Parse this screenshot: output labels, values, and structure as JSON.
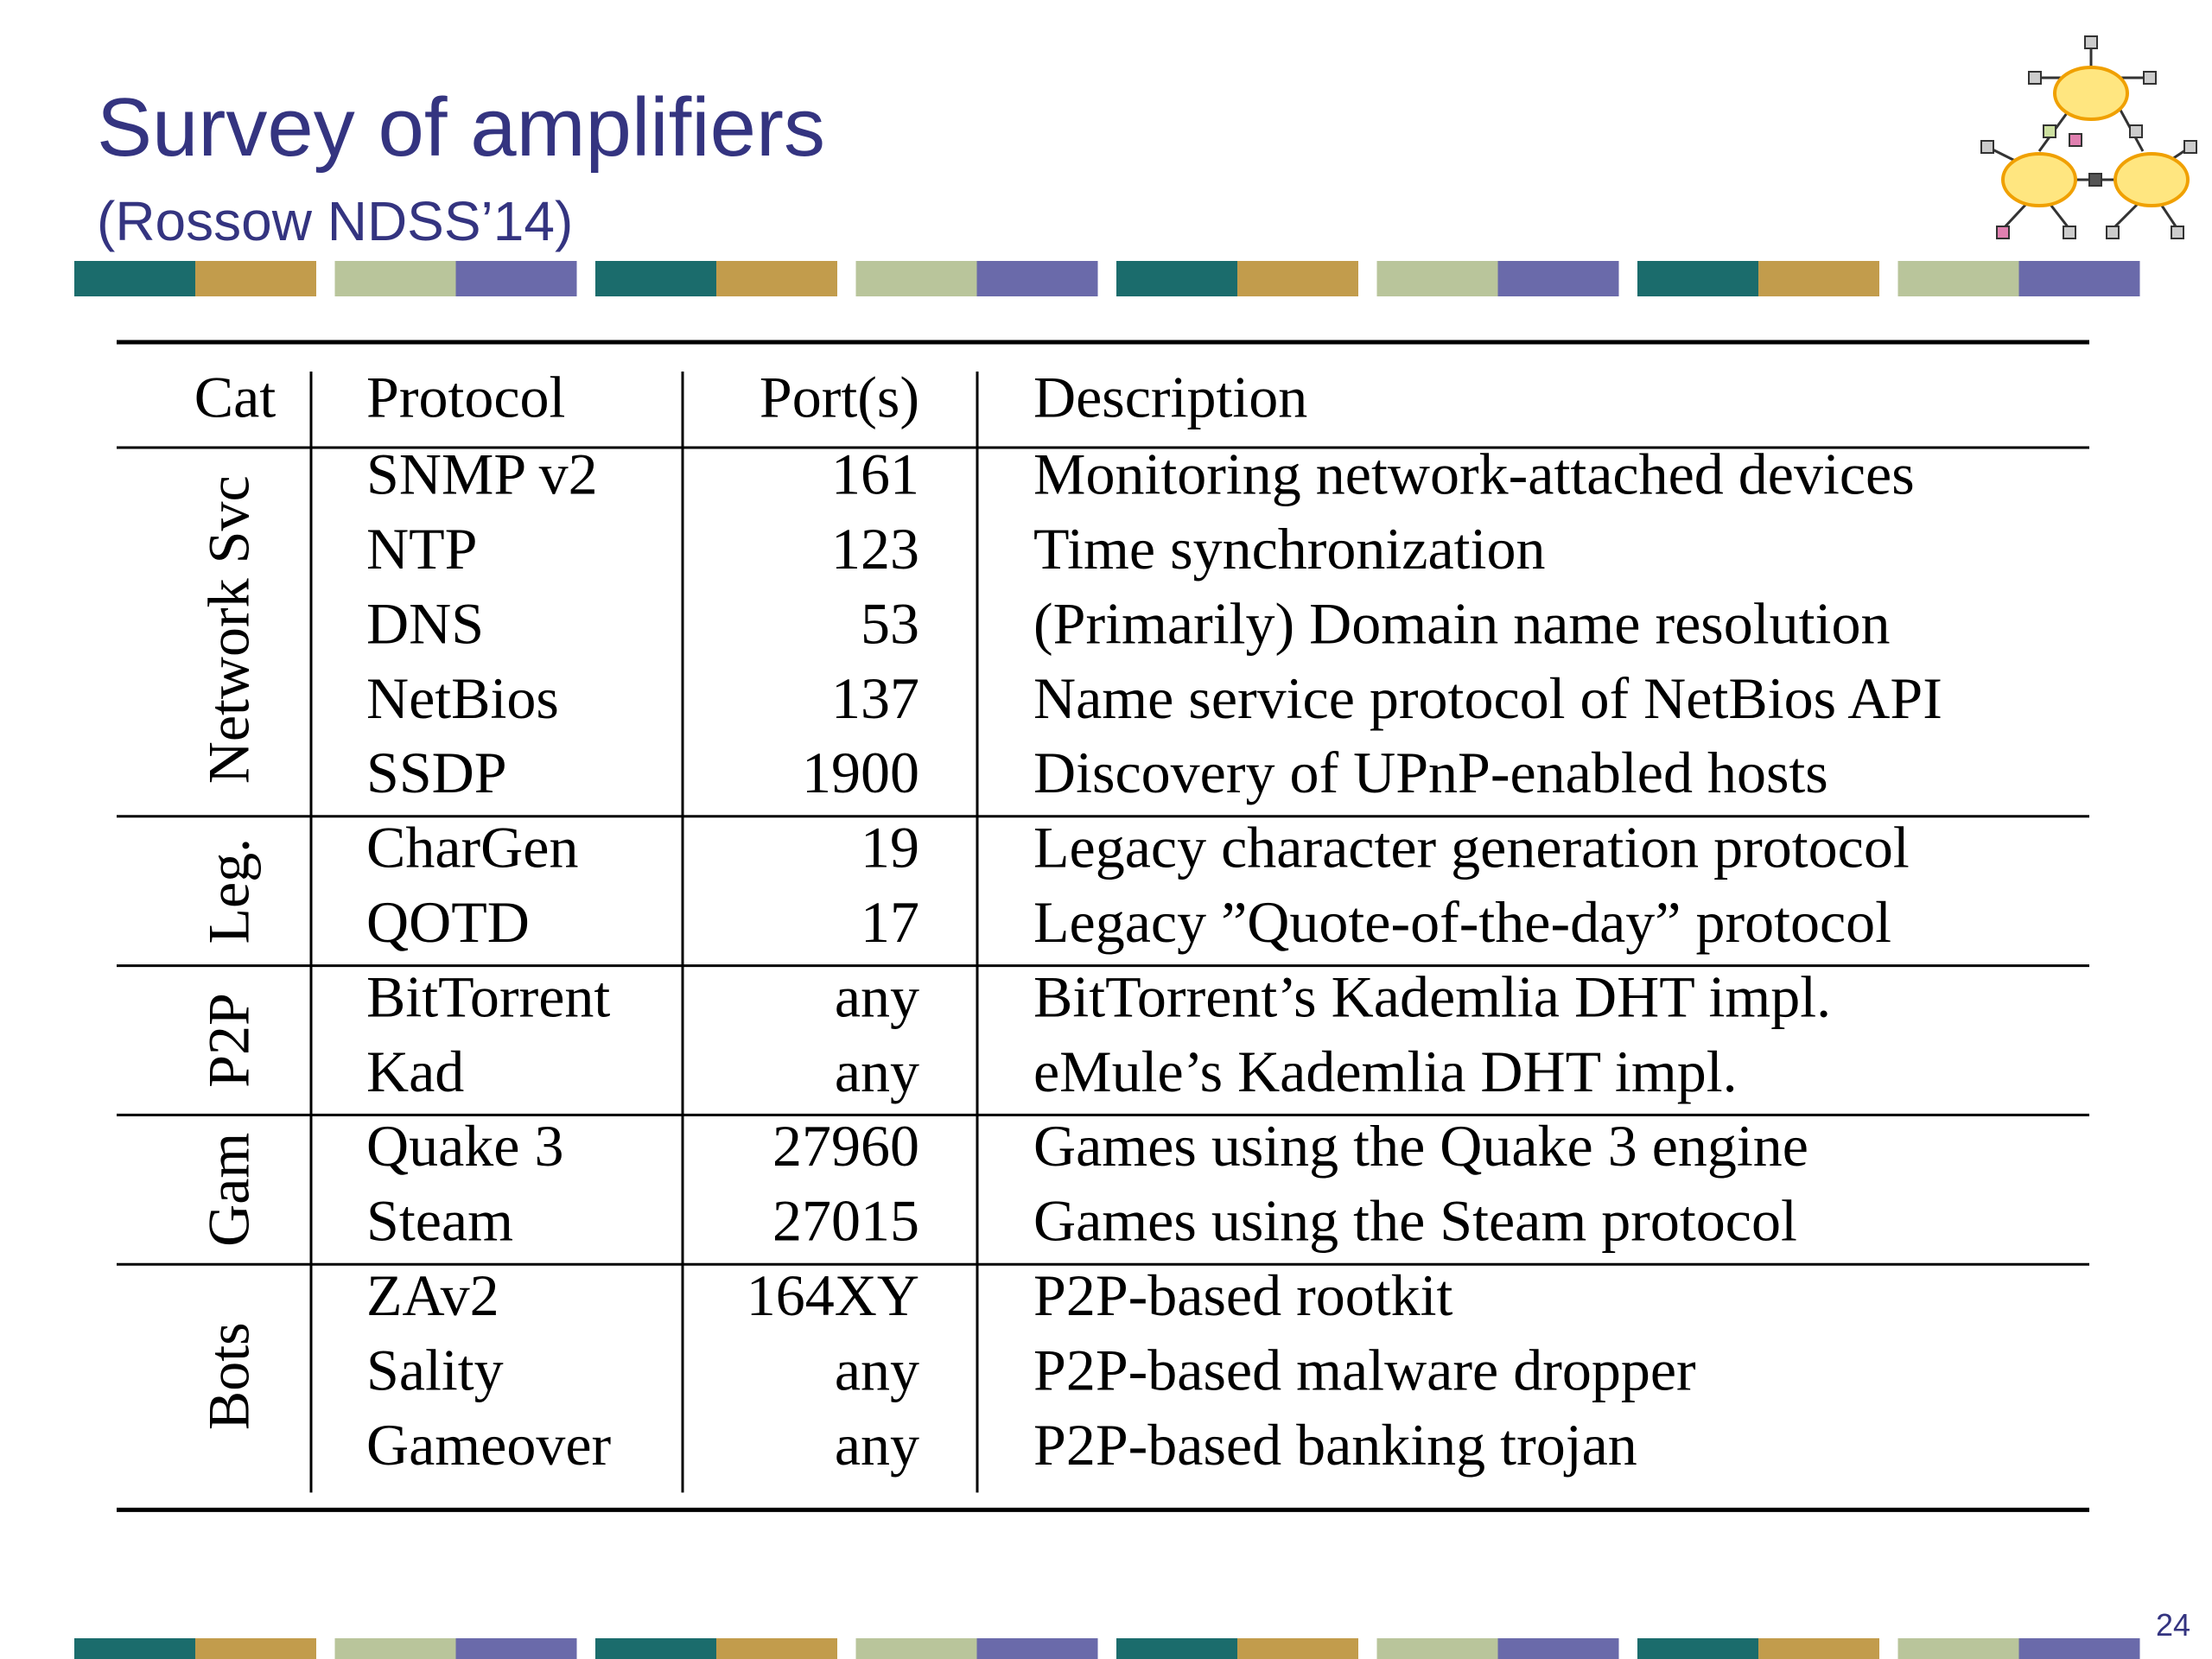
{
  "header": {
    "title": "Survey of amplifiers",
    "subtitle": "(Rossow NDSS’14)"
  },
  "table": {
    "columns": [
      "Cat",
      "Protocol",
      "Port(s)",
      "Description"
    ],
    "groups": [
      {
        "cat": "Network Svc",
        "rows": [
          [
            "SNMP v2",
            "161",
            "Monitoring network-attached devices"
          ],
          [
            "NTP",
            "123",
            "Time synchronization"
          ],
          [
            "DNS",
            "53",
            "(Primarily) Domain name resolution"
          ],
          [
            "NetBios",
            "137",
            "Name service protocol of NetBios API"
          ],
          [
            "SSDP",
            "1900",
            "Discovery of UPnP-enabled hosts"
          ]
        ]
      },
      {
        "cat": "Leg.",
        "rows": [
          [
            "CharGen",
            "19",
            "Legacy character generation protocol"
          ],
          [
            "QOTD",
            "17",
            "Legacy ”Quote-of-the-day” protocol"
          ]
        ]
      },
      {
        "cat": "P2P",
        "rows": [
          [
            "BitTorrent",
            "any",
            "BitTorrent’s Kademlia DHT impl."
          ],
          [
            "Kad",
            "any",
            "eMule’s Kademlia DHT impl."
          ]
        ]
      },
      {
        "cat": "Gam",
        "rows": [
          [
            "Quake 3",
            "27960",
            "Games using the Quake 3 engine"
          ],
          [
            "Steam",
            "27015",
            "Games using the Steam protocol"
          ]
        ]
      },
      {
        "cat": "Bots",
        "rows": [
          [
            "ZAv2",
            "164XY",
            "P2P-based rootkit"
          ],
          [
            "Sality",
            "any",
            "P2P-based malware dropper"
          ],
          [
            "Gameover",
            "any",
            "P2P-based banking trojan"
          ]
        ]
      }
    ]
  },
  "footer": {
    "page": "24"
  }
}
